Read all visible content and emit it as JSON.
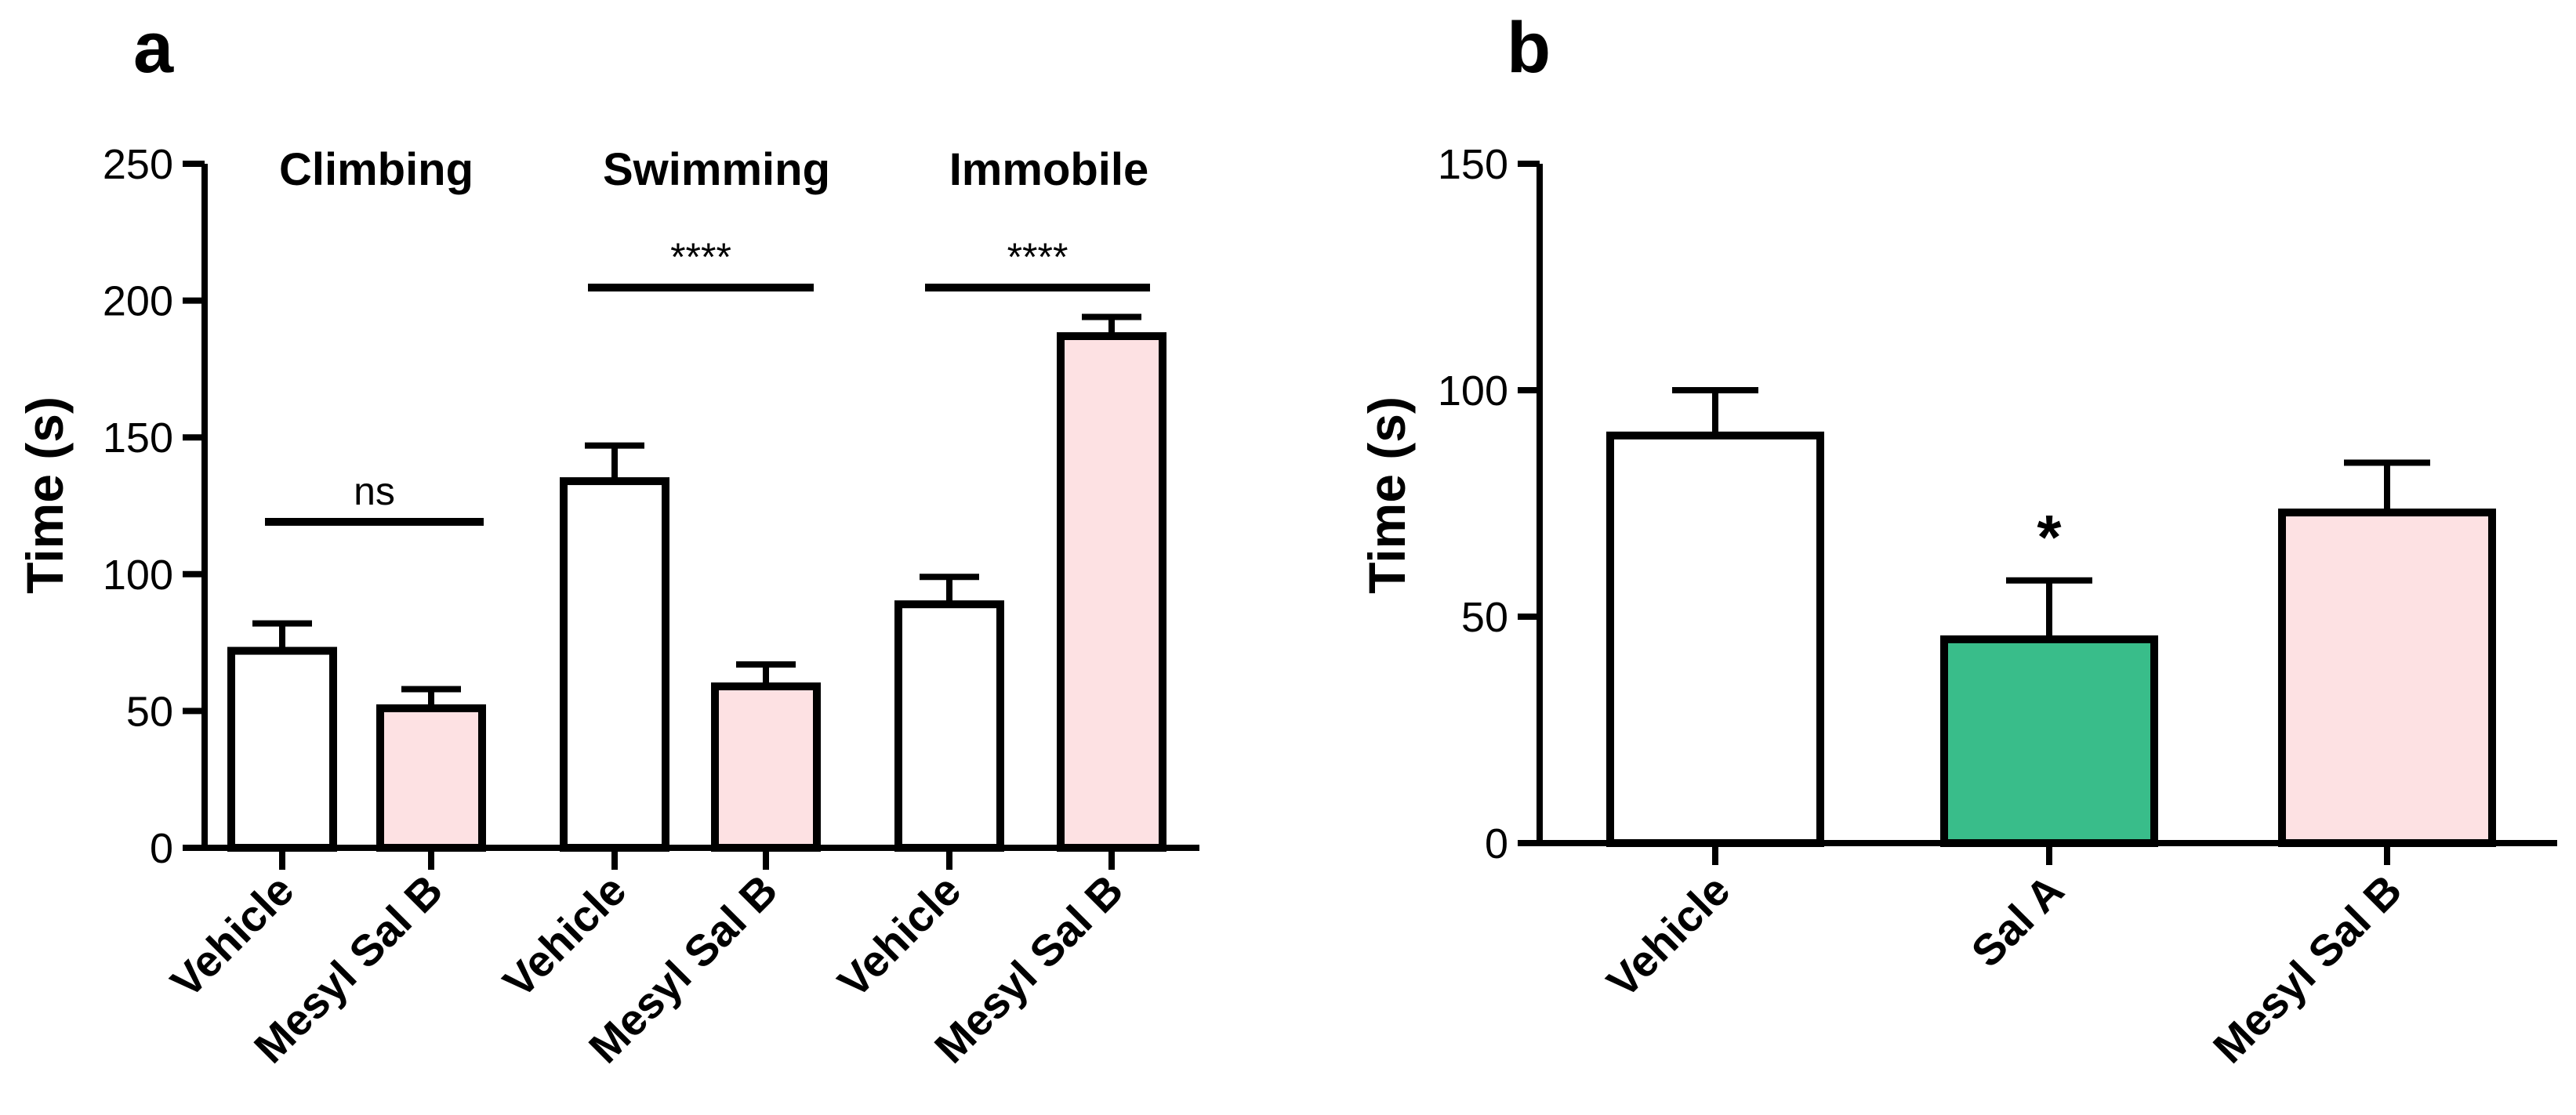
{
  "chart_data": [
    {
      "type": "bar",
      "panel_label": "a",
      "ylabel": "Time (s)",
      "ylim": [
        0,
        250
      ],
      "yticks": [
        "0",
        "50",
        "100",
        "150",
        "200",
        "250"
      ],
      "groups": [
        {
          "label": "Climbing",
          "bars": [
            {
              "category": "Vehicle",
              "value": 72,
              "error": 10,
              "color": "#ffffff"
            },
            {
              "category": "Mesyl Sal B",
              "value": 51,
              "error": 7,
              "color": "#fde1e3"
            }
          ],
          "significance": "ns"
        },
        {
          "label": "Swimming",
          "bars": [
            {
              "category": "Vehicle",
              "value": 134,
              "error": 13,
              "color": "#ffffff"
            },
            {
              "category": "Mesyl Sal B",
              "value": 59,
              "error": 8,
              "color": "#fde1e3"
            }
          ],
          "significance": "****"
        },
        {
          "label": "Immobile",
          "bars": [
            {
              "category": "Vehicle",
              "value": 89,
              "error": 10,
              "color": "#ffffff"
            },
            {
              "category": "Mesyl Sal B",
              "value": 187,
              "error": 7,
              "color": "#fde1e3"
            }
          ],
          "significance": "****"
        }
      ]
    },
    {
      "type": "bar",
      "panel_label": "b",
      "ylabel": "Time (s)",
      "ylim": [
        0,
        150
      ],
      "yticks": [
        "0",
        "50",
        "100",
        "150"
      ],
      "categories": [
        "Vehicle",
        "Sal A",
        "Mesyl Sal B"
      ],
      "values": [
        90,
        45,
        73
      ],
      "errors": [
        10,
        13,
        11
      ],
      "colors": [
        "#ffffff",
        "#39bd8a",
        "#fde1e3"
      ],
      "annotations": [
        {
          "category": "Sal A",
          "text": "*"
        }
      ]
    }
  ]
}
